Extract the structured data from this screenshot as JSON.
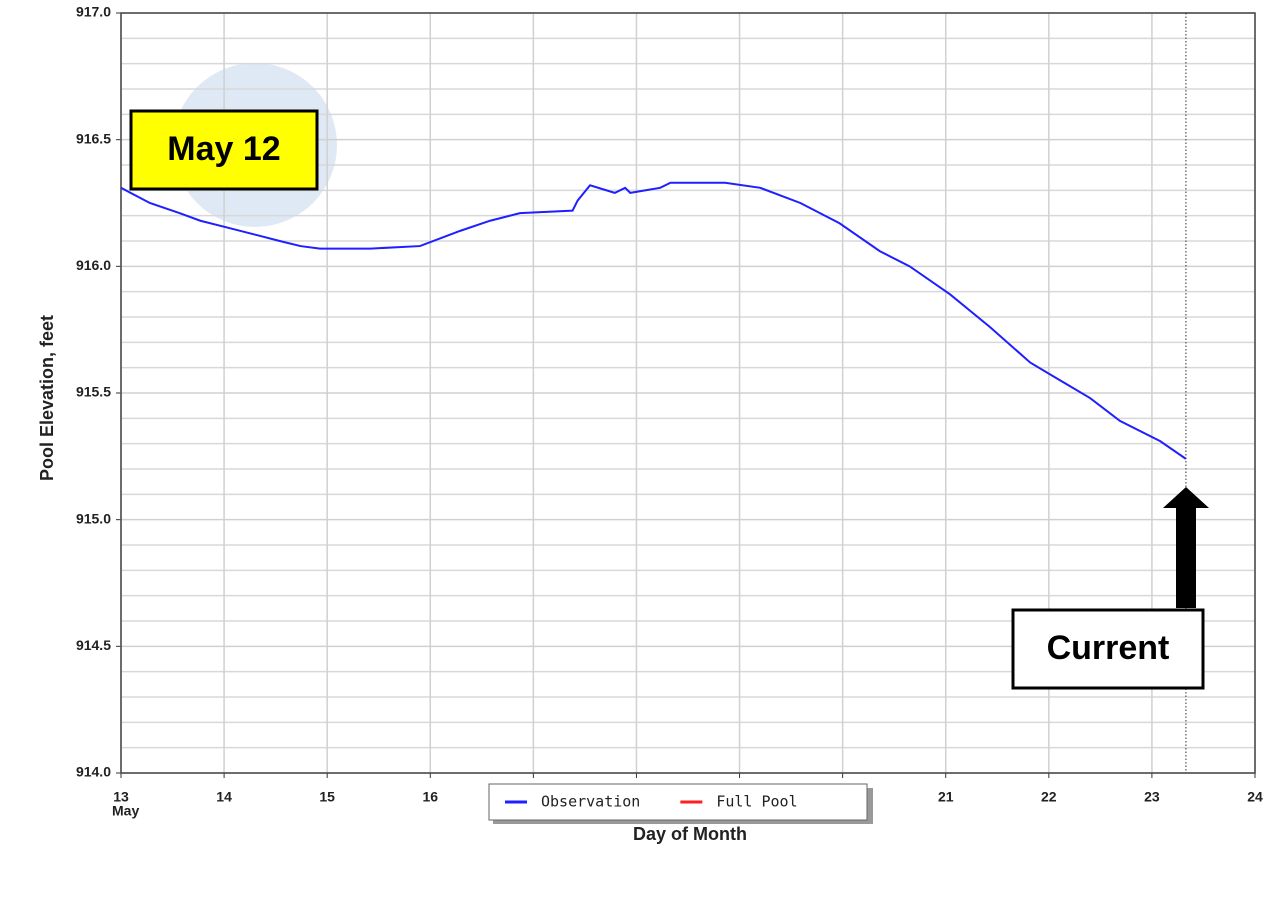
{
  "chart_data": {
    "type": "line",
    "x_label": "Day of Month",
    "y_label": "Pool Elevation, feet",
    "x_sublabel": "May",
    "xlim": [
      13,
      24
    ],
    "xticks": [
      13,
      14,
      15,
      16,
      17,
      18,
      19,
      20,
      21,
      22,
      23,
      24
    ],
    "ylim": [
      914,
      917
    ],
    "yticks": [
      {
        "value": 914,
        "label": "914.0"
      },
      914.5,
      {
        "value": 915,
        "label": "915.0"
      },
      915.5,
      {
        "value": 916,
        "label": "916.0"
      },
      916.5,
      {
        "value": 917,
        "label": "917.0"
      }
    ],
    "yminor_ticks": [
      914.1,
      914.2,
      914.3,
      914.4,
      914.6,
      914.7,
      914.8,
      914.9,
      915.1,
      915.2,
      915.3,
      915.4,
      915.6,
      915.7,
      915.8,
      915.9,
      916.1,
      916.2,
      916.3,
      916.4,
      916.6,
      916.7,
      916.8,
      916.9
    ],
    "grid": true,
    "legend": "bottom",
    "series": [
      {
        "name": "Observation",
        "color": "#1f1fff",
        "x": [
          13.0,
          13.28,
          13.57,
          13.77,
          14.06,
          14.35,
          14.54,
          14.74,
          14.93,
          15.42,
          15.9,
          16.29,
          16.58,
          16.87,
          17.38,
          17.43,
          17.55,
          17.79,
          17.89,
          17.94,
          18.23,
          18.33,
          18.86,
          19.2,
          19.59,
          19.97,
          20.36,
          20.65,
          21.04,
          21.43,
          21.82,
          22.11,
          22.4,
          22.69,
          23.08,
          23.33
        ],
        "values": [
          916.31,
          916.25,
          916.21,
          916.18,
          916.15,
          916.12,
          916.1,
          916.08,
          916.07,
          916.07,
          916.08,
          916.14,
          916.18,
          916.21,
          916.22,
          916.26,
          916.32,
          916.29,
          916.31,
          916.29,
          916.31,
          916.33,
          916.33,
          916.31,
          916.25,
          916.17,
          916.06,
          916.0,
          915.89,
          915.76,
          915.62,
          915.55,
          915.48,
          915.39,
          915.31,
          915.24
        ]
      },
      {
        "name": "Full Pool",
        "color": "#ff1f1f"
      }
    ],
    "current_x": 23.33,
    "annotations": [
      "May 12",
      "Current"
    ]
  }
}
